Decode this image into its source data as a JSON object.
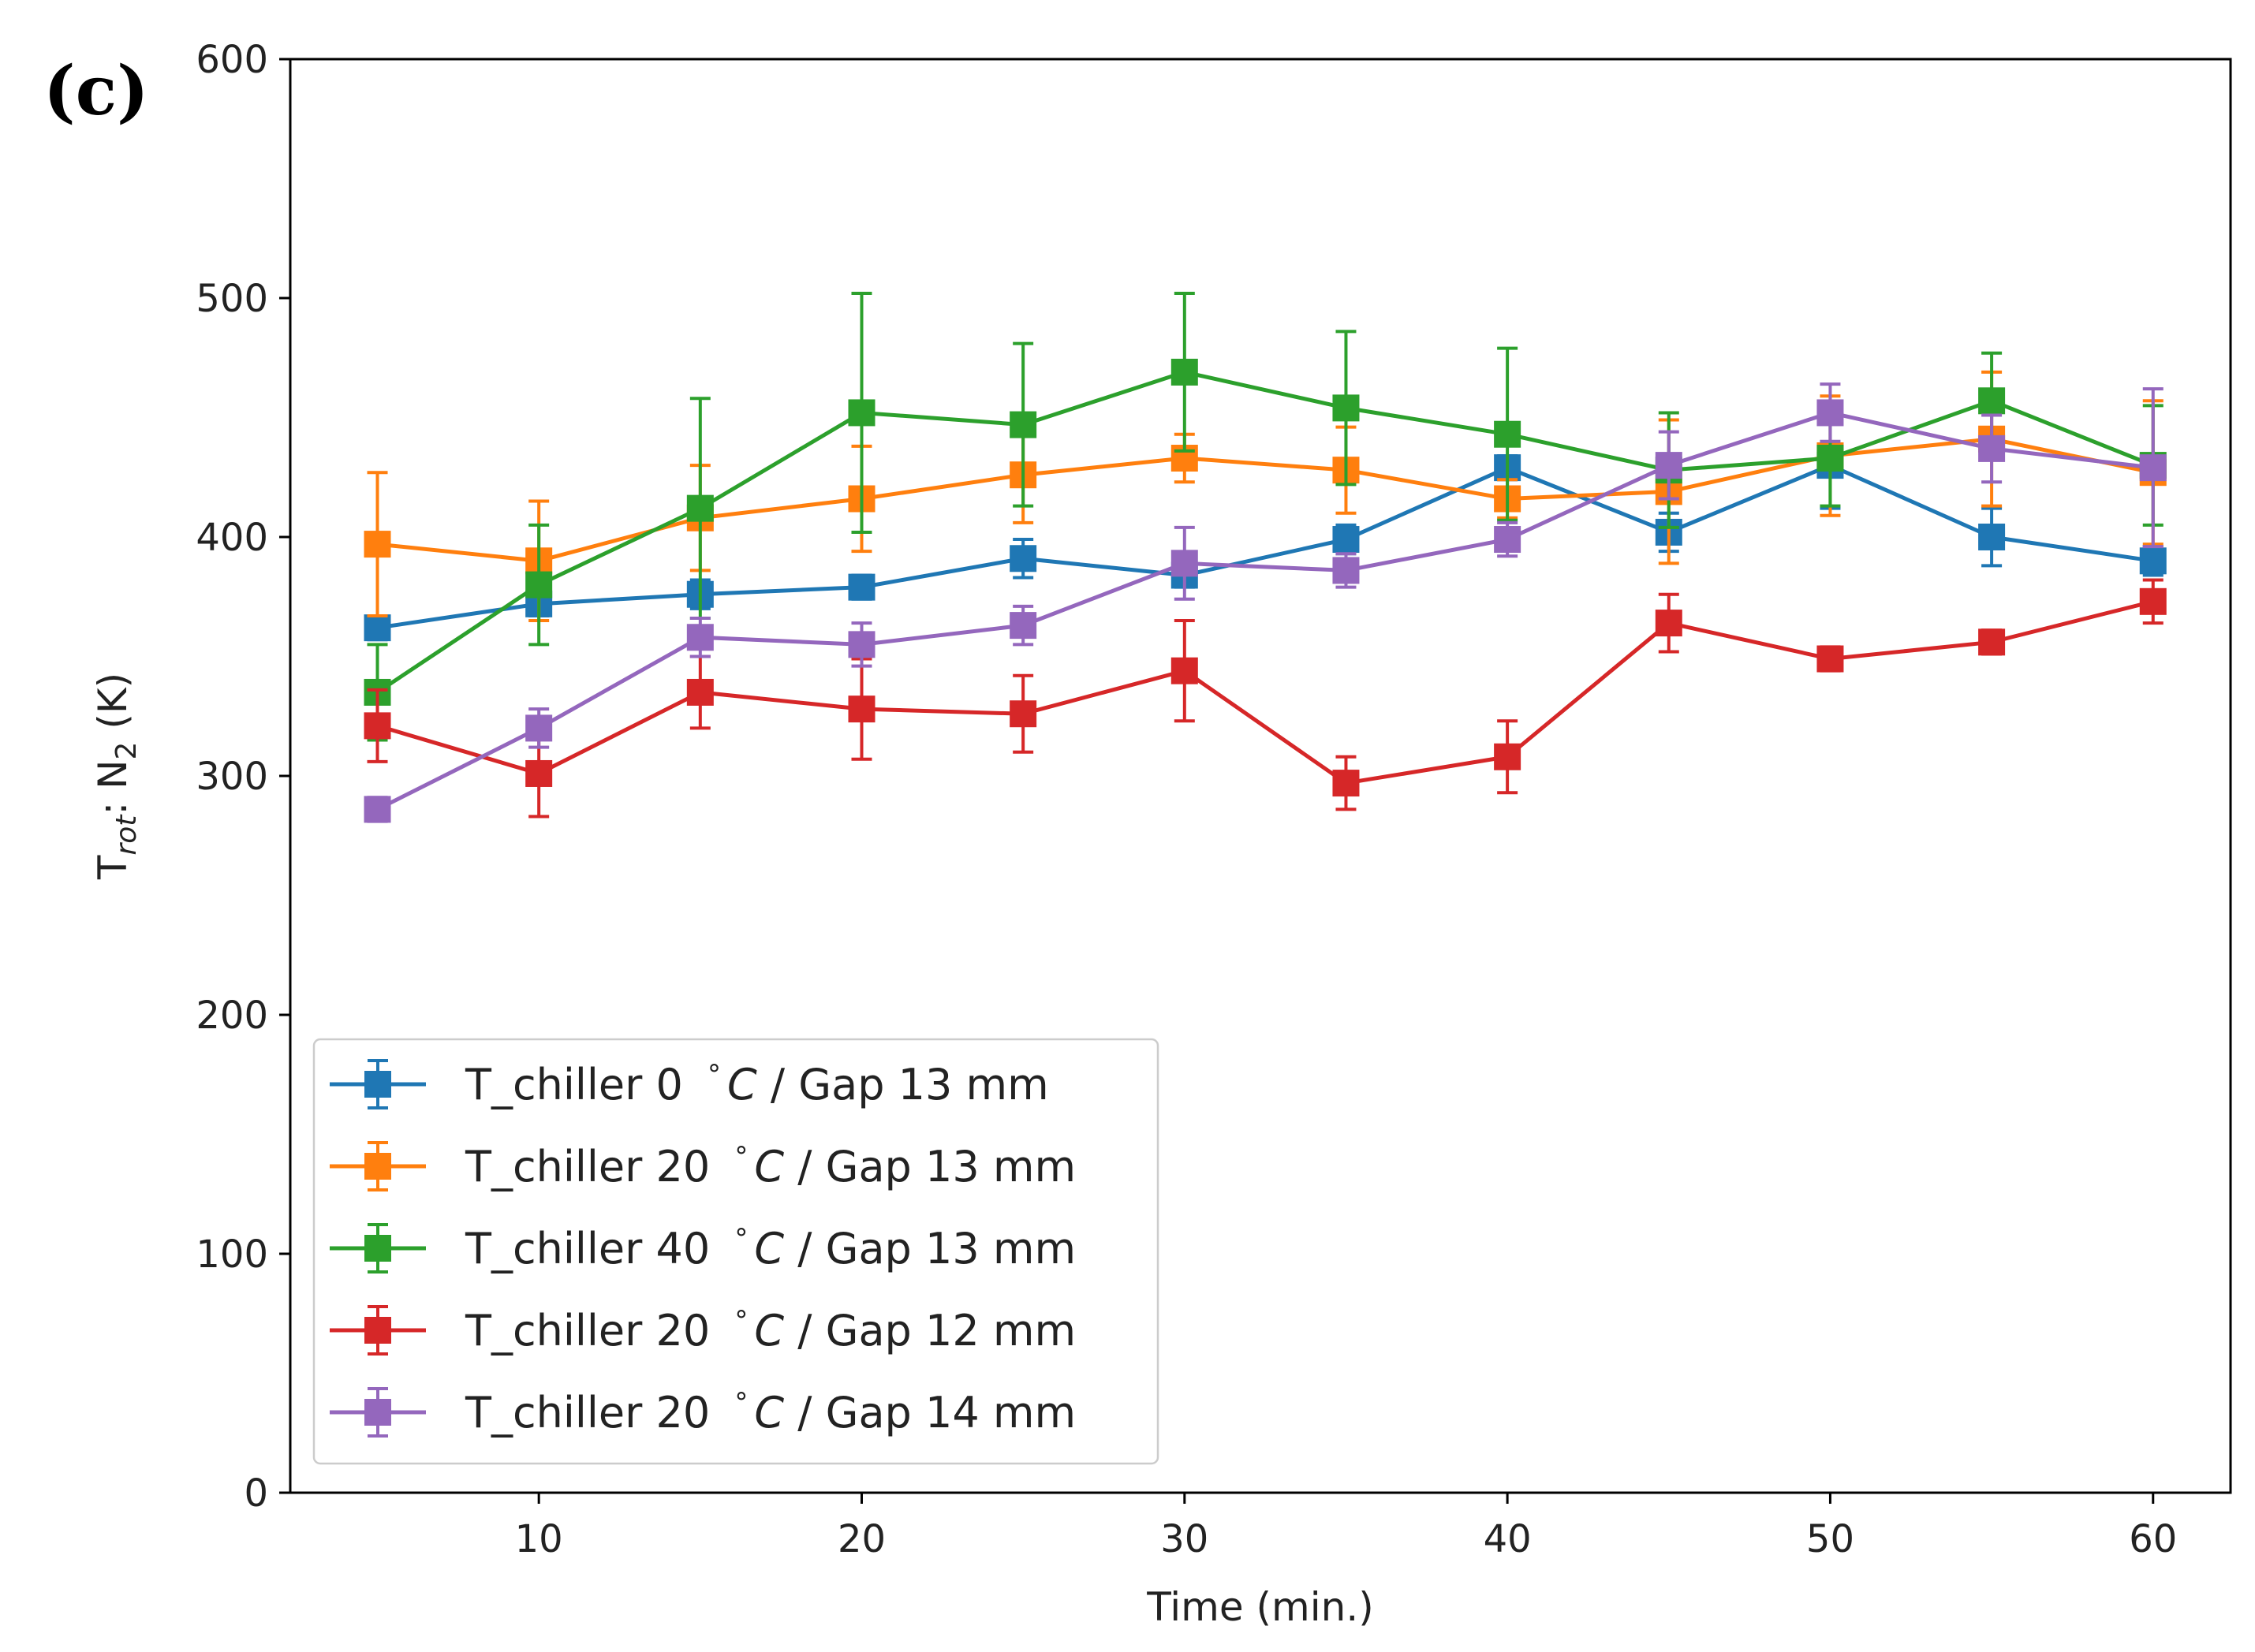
{
  "panel_label": "(c)",
  "chart_data": {
    "type": "line",
    "title": "",
    "xlabel": "Time (min.)",
    "ylabel": {
      "main": "T",
      "sub": "rot",
      "rest": ": N",
      "sub2": "2",
      "tail": " (K)"
    },
    "xlim": [
      2.3,
      62.4
    ],
    "ylim": [
      0,
      600
    ],
    "xticks": [
      10,
      20,
      30,
      40,
      50,
      60
    ],
    "yticks": [
      0,
      100,
      200,
      300,
      400,
      500,
      600
    ],
    "x": [
      5,
      10,
      15,
      20,
      25,
      30,
      35,
      40,
      45,
      50,
      55,
      60
    ],
    "marker": "square",
    "error_bars": true,
    "legend_position": "lower-left",
    "series": [
      {
        "name": "T_chiller 0  °C / Gap 13 mm",
        "legend_parts": [
          "T_chiller 0 ",
          "°",
          "C",
          " / Gap 13 mm"
        ],
        "color": "#1f77b4",
        "values": [
          362,
          372,
          376,
          379,
          391,
          384,
          399,
          429,
          402,
          430,
          400,
          390
        ],
        "errors": [
          5,
          5,
          6,
          5,
          8,
          5,
          6,
          5,
          8,
          18,
          12,
          6
        ]
      },
      {
        "name": "T_chiller 20  °C / Gap 13 mm",
        "legend_parts": [
          "T_chiller 20 ",
          "°",
          "C",
          " / Gap 13 mm"
        ],
        "color": "#ff7f0e",
        "values": [
          397,
          390,
          408,
          416,
          426,
          433,
          428,
          416,
          419,
          434,
          441,
          427
        ],
        "errors": [
          30,
          25,
          22,
          22,
          20,
          10,
          18,
          8,
          30,
          25,
          28,
          30
        ]
      },
      {
        "name": "T_chiller 40  °C / Gap 13 mm",
        "legend_parts": [
          "T_chiller 40 ",
          "°",
          "C",
          " / Gap 13 mm"
        ],
        "color": "#2ca02c",
        "values": [
          335,
          380,
          412,
          452,
          447,
          469,
          454,
          443,
          428,
          433,
          457,
          430
        ],
        "errors": [
          20,
          25,
          46,
          50,
          34,
          33,
          32,
          36,
          24,
          20,
          20,
          25
        ]
      },
      {
        "name": "T_chiller 20  °C / Gap 12 mm",
        "legend_parts": [
          "T_chiller 20 ",
          "°",
          "C",
          " / Gap 12 mm"
        ],
        "color": "#d62728",
        "values": [
          321,
          301,
          335,
          328,
          326,
          344,
          297,
          308,
          364,
          349,
          356,
          373
        ],
        "errors": [
          15,
          18,
          15,
          21,
          16,
          21,
          11,
          15,
          12,
          5,
          5,
          9
        ]
      },
      {
        "name": "T_chiller 20  °C / Gap 14 mm",
        "legend_parts": [
          "T_chiller 20 ",
          "°",
          "C",
          " / Gap 14 mm"
        ],
        "color": "#9467bd",
        "values": [
          286,
          320,
          358,
          355,
          363,
          389,
          386,
          399,
          430,
          452,
          437,
          429
        ],
        "errors": [
          5,
          8,
          8,
          9,
          8,
          15,
          7,
          7,
          14,
          12,
          14,
          33
        ]
      }
    ]
  }
}
